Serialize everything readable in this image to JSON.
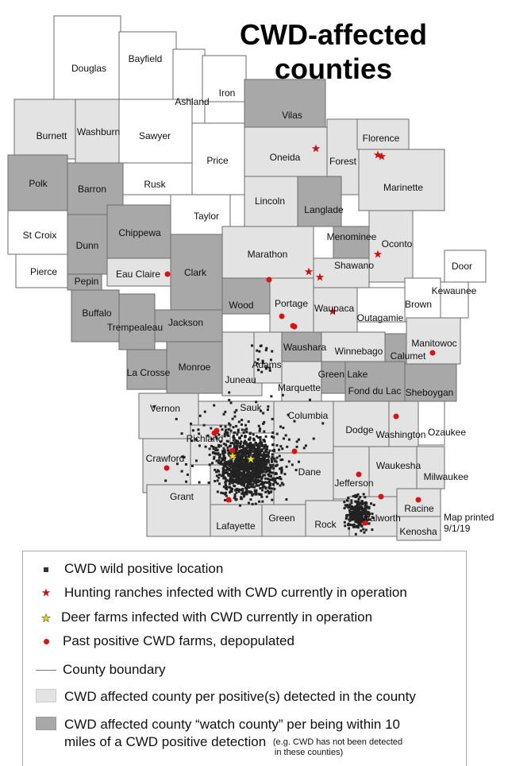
{
  "title": "CWD-affected counties",
  "title_lines": [
    "CWD-affected",
    "counties"
  ],
  "map_note": [
    "Map printed",
    "9/1/19"
  ],
  "colors": {
    "none": "#ffffff",
    "affected": "#e3e3e3",
    "watch": "#a8a8a8",
    "border": "#6b6b6b",
    "wild": "#222222",
    "ranch": "#cc1111",
    "farm": "#f2e600",
    "past": "#dd1111"
  },
  "counties": [
    {
      "name": "Douglas",
      "status": "none"
    },
    {
      "name": "Bayfield",
      "status": "none"
    },
    {
      "name": "Ashland",
      "status": "none"
    },
    {
      "name": "Iron",
      "status": "none"
    },
    {
      "name": "Vilas",
      "status": "watch"
    },
    {
      "name": "Burnett",
      "status": "affected"
    },
    {
      "name": "Washburn",
      "status": "affected"
    },
    {
      "name": "Sawyer",
      "status": "none"
    },
    {
      "name": "Price",
      "status": "none"
    },
    {
      "name": "Oneida",
      "status": "affected"
    },
    {
      "name": "Forest",
      "status": "affected"
    },
    {
      "name": "Florence",
      "status": "affected"
    },
    {
      "name": "Marinette",
      "status": "affected"
    },
    {
      "name": "Polk",
      "status": "watch"
    },
    {
      "name": "Barron",
      "status": "watch"
    },
    {
      "name": "Rusk",
      "status": "none"
    },
    {
      "name": "Taylor",
      "status": "none"
    },
    {
      "name": "Lincoln",
      "status": "affected"
    },
    {
      "name": "Langlade",
      "status": "watch"
    },
    {
      "name": "Oconto",
      "status": "affected"
    },
    {
      "name": "Menominee",
      "status": "watch"
    },
    {
      "name": "Shawano",
      "status": "affected"
    },
    {
      "name": "Marathon",
      "status": "affected"
    },
    {
      "name": "St Croix",
      "status": "none"
    },
    {
      "name": "Dunn",
      "status": "watch"
    },
    {
      "name": "Chippewa",
      "status": "watch"
    },
    {
      "name": "Pierce",
      "status": "none"
    },
    {
      "name": "Pepin",
      "status": "watch"
    },
    {
      "name": "Eau Claire",
      "status": "affected"
    },
    {
      "name": "Clark",
      "status": "watch"
    },
    {
      "name": "Wood",
      "status": "watch"
    },
    {
      "name": "Portage",
      "status": "affected"
    },
    {
      "name": "Waupaca",
      "status": "affected"
    },
    {
      "name": "Outagamie",
      "status": "none"
    },
    {
      "name": "Brown",
      "status": "none"
    },
    {
      "name": "Kewaunee",
      "status": "none"
    },
    {
      "name": "Door",
      "status": "none"
    },
    {
      "name": "Buffalo",
      "status": "watch"
    },
    {
      "name": "Trempealeau",
      "status": "watch"
    },
    {
      "name": "Jackson",
      "status": "watch"
    },
    {
      "name": "Monroe",
      "status": "watch"
    },
    {
      "name": "La Crosse",
      "status": "watch"
    },
    {
      "name": "Juneau",
      "status": "affected"
    },
    {
      "name": "Adams",
      "status": "affected"
    },
    {
      "name": "Waushara",
      "status": "watch"
    },
    {
      "name": "Winnebago",
      "status": "affected"
    },
    {
      "name": "Calumet",
      "status": "watch"
    },
    {
      "name": "Manitowoc",
      "status": "affected"
    },
    {
      "name": "Marquette",
      "status": "affected"
    },
    {
      "name": "Green Lake",
      "status": "watch"
    },
    {
      "name": "Fond du Lac",
      "status": "watch"
    },
    {
      "name": "Sheboygan",
      "status": "watch"
    },
    {
      "name": "Vernon",
      "status": "affected"
    },
    {
      "name": "Sauk",
      "status": "affected"
    },
    {
      "name": "Columbia",
      "status": "affected"
    },
    {
      "name": "Dodge",
      "status": "affected"
    },
    {
      "name": "Washington",
      "status": "affected"
    },
    {
      "name": "Ozaukee",
      "status": "none"
    },
    {
      "name": "Richland",
      "status": "affected"
    },
    {
      "name": "Crawford",
      "status": "affected"
    },
    {
      "name": "",
      "status": "affected"
    },
    {
      "name": "Dane",
      "status": "affected"
    },
    {
      "name": "Jefferson",
      "status": "affected"
    },
    {
      "name": "Waukesha",
      "status": "affected"
    },
    {
      "name": "Milwaukee",
      "status": "affected"
    },
    {
      "name": "Grant",
      "status": "affected"
    },
    {
      "name": "Lafayette",
      "status": "affected"
    },
    {
      "name": "Green",
      "status": "affected"
    },
    {
      "name": "Rock",
      "status": "affected"
    },
    {
      "name": "Walworth",
      "status": "affected"
    },
    {
      "name": "Racine",
      "status": "affected"
    },
    {
      "name": "Kenosha",
      "status": "affected"
    }
  ],
  "legend": {
    "wild": "CWD wild positive location",
    "ranch": "Hunting ranches infected with CWD currently in operation",
    "farm": "Deer farms infected with CWD currently in operation",
    "past": "Past positive CWD farms, depopulated",
    "boundary": "County boundary",
    "affected": "CWD affected county per positive(s) detected in the county",
    "watch_line1": "CWD affected county “watch county” per being within 10",
    "watch_line2": "miles of a CWD positive detection",
    "watch_note_line1": "(e.g. CWD has not been detected",
    "watch_note_line2": "in these counties)"
  }
}
